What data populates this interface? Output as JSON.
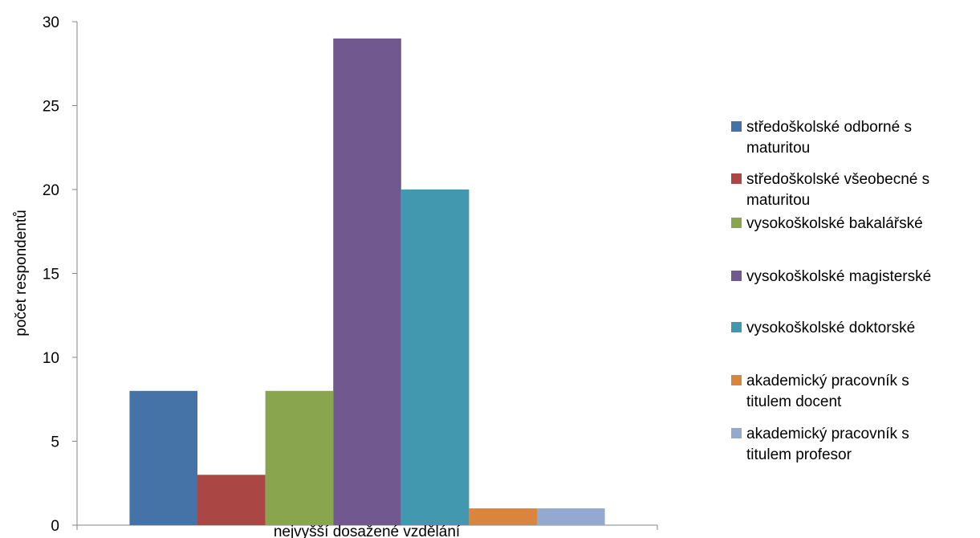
{
  "chart_data": {
    "type": "bar",
    "title": "",
    "xlabel": "nejvyšší dosažené vzdělání",
    "ylabel": "počet respondentů",
    "ylim": [
      0,
      30
    ],
    "yticks": [
      0,
      5,
      10,
      15,
      20,
      25,
      30
    ],
    "grid": false,
    "legend_position": "right",
    "series": [
      {
        "name": "středoškolské odborné s maturitou",
        "legend_lines": [
          "středoškolské odborné s",
          "maturitou"
        ],
        "value": 8,
        "color": "#4572A7"
      },
      {
        "name": "středoškolské všeobecné s maturitou",
        "legend_lines": [
          "středoškolské všeobecné s",
          "maturitou"
        ],
        "value": 3,
        "color": "#AA4643"
      },
      {
        "name": "vysokoškolské bakalářské",
        "legend_lines": [
          "vysokoškolské bakalářské"
        ],
        "value": 8,
        "color": "#89A54E"
      },
      {
        "name": "vysokoškolské magisterské",
        "legend_lines": [
          "vysokoškolské magisterské"
        ],
        "value": 29,
        "color": "#71588F"
      },
      {
        "name": "vysokoškolské doktorské",
        "legend_lines": [
          "vysokoškolské doktorské"
        ],
        "value": 20,
        "color": "#4198AF"
      },
      {
        "name": "akademický pracovník s titulem docent",
        "legend_lines": [
          "akademický pracovník s",
          "titulem docent"
        ],
        "value": 1,
        "color": "#DB843D"
      },
      {
        "name": "akademický pracovník s titulem profesor",
        "legend_lines": [
          "akademický pracovník s",
          "titulem profesor"
        ],
        "value": 1,
        "color": "#93A9CF"
      }
    ]
  }
}
